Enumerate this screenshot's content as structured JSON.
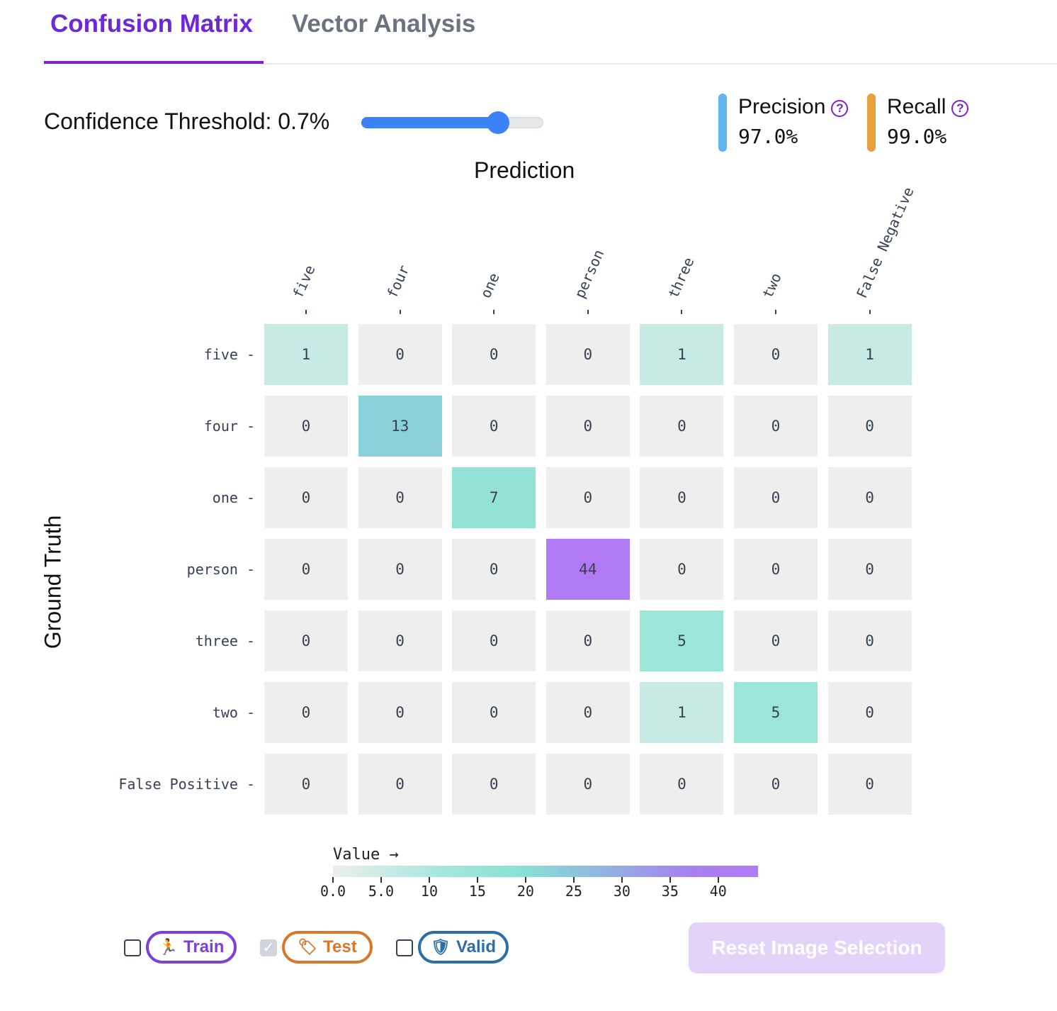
{
  "tabs": [
    {
      "label": "Confusion Matrix",
      "active": true
    },
    {
      "label": "Vector Analysis",
      "active": false
    }
  ],
  "threshold": {
    "label": "Confidence Threshold: 0.7%",
    "slider_level": 0.75
  },
  "metrics": {
    "precision": {
      "label": "Precision",
      "value": "97.0%",
      "color": "#60b4f0",
      "help_icon": "question-circle-icon"
    },
    "recall": {
      "label": "Recall",
      "value": "99.0%",
      "color": "#e8a03c",
      "help_icon": "question-circle-icon"
    }
  },
  "axes": {
    "x_title": "Prediction",
    "y_title": "Ground Truth"
  },
  "chart_data": {
    "type": "heatmap",
    "x_categories": [
      "five",
      "four",
      "one",
      "person",
      "three",
      "two",
      "False Negative"
    ],
    "y_categories": [
      "five",
      "four",
      "one",
      "person",
      "three",
      "two",
      "False Positive"
    ],
    "xlabel": "Prediction",
    "ylabel": "Ground Truth",
    "values": [
      [
        1,
        0,
        0,
        0,
        1,
        0,
        1
      ],
      [
        0,
        13,
        0,
        0,
        0,
        0,
        0
      ],
      [
        0,
        0,
        7,
        0,
        0,
        0,
        0
      ],
      [
        0,
        0,
        0,
        44,
        0,
        0,
        0
      ],
      [
        0,
        0,
        0,
        0,
        5,
        0,
        0
      ],
      [
        0,
        0,
        0,
        0,
        1,
        5,
        0
      ],
      [
        0,
        0,
        0,
        0,
        0,
        0,
        0
      ]
    ],
    "colorscale": {
      "title": "Value →",
      "range": [
        0,
        44
      ],
      "ticks": [
        "0.0",
        "5.0",
        "10",
        "15",
        "20",
        "25",
        "30",
        "35",
        "40"
      ],
      "tick_values": [
        0,
        5,
        10,
        15,
        20,
        25,
        30,
        35,
        40
      ],
      "colors": [
        "#eceeee",
        "#a6e7dd",
        "#88e0d5",
        "#90b8e0",
        "#a77ef0",
        "#b07af5"
      ]
    }
  },
  "filters": [
    {
      "label": "Train",
      "checked": false,
      "color": "#7e3fd6",
      "icon": "running-person-icon"
    },
    {
      "label": "Test",
      "checked": true,
      "color": "#d8782c",
      "icon": "tag-icon"
    },
    {
      "label": "Valid",
      "checked": false,
      "color": "#2e6ea8",
      "icon": "shield-check-icon"
    }
  ],
  "reset_button": {
    "label": "Reset Image Selection"
  }
}
